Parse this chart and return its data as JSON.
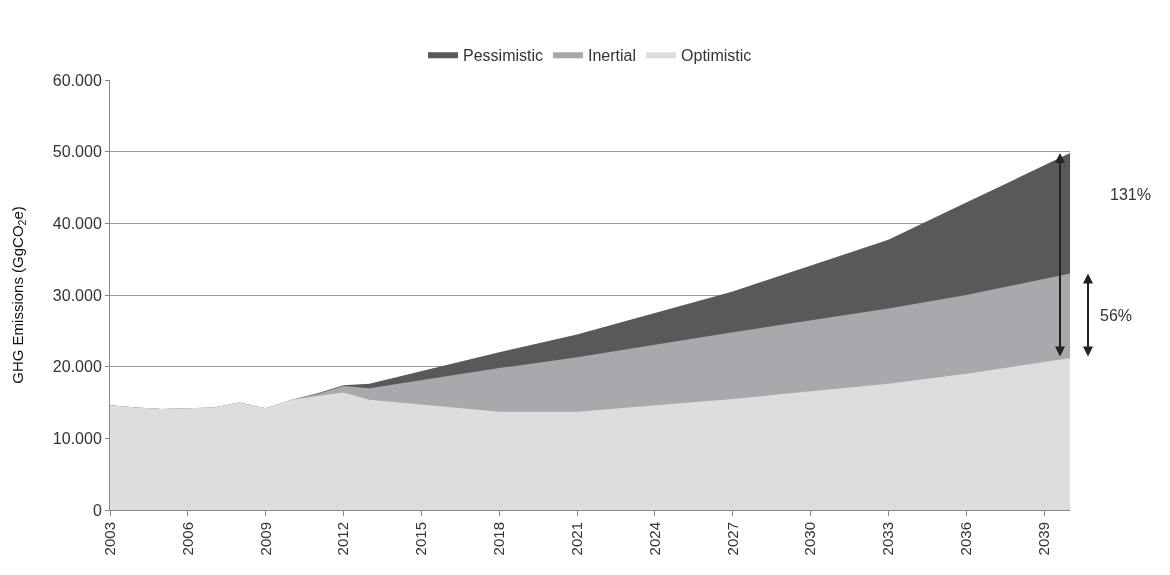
{
  "chart_data": {
    "type": "area",
    "ylabel": "GHG Emissions (GgCO$_{2}$e)",
    "x": [
      2003,
      2004,
      2005,
      2006,
      2007,
      2008,
      2009,
      2010,
      2011,
      2012,
      2013,
      2018,
      2021,
      2027,
      2033,
      2036,
      2040
    ],
    "series": [
      {
        "name": "Pessimistic",
        "color": "#58595b",
        "values": [
          14600,
          14300,
          14100,
          14200,
          14300,
          15000,
          14200,
          15400,
          16300,
          17400,
          17600,
          22000,
          24500,
          30500,
          37700,
          42900,
          49800
        ]
      },
      {
        "name": "Inertial",
        "color": "#a7a9ac",
        "values": [
          14600,
          14300,
          14100,
          14200,
          14300,
          15000,
          14200,
          15400,
          16200,
          17300,
          17000,
          19800,
          21300,
          24800,
          28100,
          30000,
          33000
        ]
      },
      {
        "name": "Optimistic",
        "color": "#dcdddf",
        "values": [
          14600,
          14300,
          14100,
          14200,
          14300,
          15000,
          14200,
          15400,
          15900,
          16400,
          15400,
          13700,
          13700,
          15500,
          17600,
          19000,
          21200
        ]
      }
    ],
    "xlim": [
      2003,
      2040
    ],
    "xticks": [
      2003,
      2006,
      2009,
      2012,
      2015,
      2018,
      2021,
      2024,
      2027,
      2030,
      2033,
      2036,
      2039
    ],
    "ylim": [
      0,
      60000
    ],
    "yticks": [
      0,
      {
        "value": 10000,
        "label": "10.000"
      },
      {
        "value": 20000,
        "label": "20.000"
      },
      {
        "value": 30000,
        "label": "30.000"
      },
      {
        "value": 40000,
        "label": "40.000"
      },
      {
        "value": 50000,
        "label": "50.000"
      },
      {
        "value": 60000,
        "label": "60.000"
      }
    ],
    "grid": "y",
    "legend": "top",
    "annotations": [
      "131%",
      "56%"
    ]
  }
}
